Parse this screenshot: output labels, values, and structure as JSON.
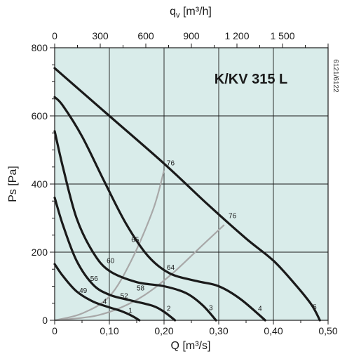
{
  "chart_data": {
    "type": "line",
    "title": "K/KV 315 L",
    "side_code": "6121/6122",
    "xlabel": "Q [m³/s]",
    "x2label": "qv [m³/h]",
    "x2label_main": "q",
    "x2label_sub": "v",
    "x2label_unit": " [m³/h]",
    "ylabel": "Ps [Pa]",
    "xlim": [
      0,
      0.5
    ],
    "x2lim": [
      0,
      1800
    ],
    "ylim": [
      0,
      800
    ],
    "x_ticks": [
      {
        "value": 0,
        "label": "0"
      },
      {
        "value": 0.1,
        "label": "0,10"
      },
      {
        "value": 0.2,
        "label": "0,20"
      },
      {
        "value": 0.3,
        "label": "0,30"
      },
      {
        "value": 0.4,
        "label": "0,40"
      },
      {
        "value": 0.5,
        "label": "0,50"
      }
    ],
    "x2_ticks": [
      {
        "value": 0,
        "label": "0"
      },
      {
        "value": 300,
        "label": "300"
      },
      {
        "value": 600,
        "label": "600"
      },
      {
        "value": 900,
        "label": "900"
      },
      {
        "value": 1200,
        "label": "1 200"
      },
      {
        "value": 1500,
        "label": "1 500"
      }
    ],
    "y_ticks": [
      {
        "value": 0,
        "label": "0"
      },
      {
        "value": 200,
        "label": "200"
      },
      {
        "value": 400,
        "label": "400"
      },
      {
        "value": 600,
        "label": "600"
      },
      {
        "value": 800,
        "label": "800"
      }
    ],
    "grid": true,
    "background": "#d9ecea",
    "curve_color": "#1a1a1a",
    "efficiency_color": "#a8a8a8",
    "series": [
      {
        "name": "1",
        "points": [
          [
            0,
            165
          ],
          [
            0.015,
            130
          ],
          [
            0.04,
            85
          ],
          [
            0.07,
            55
          ],
          [
            0.1,
            38
          ],
          [
            0.12,
            28
          ],
          [
            0.14,
            14
          ],
          [
            0.155,
            0
          ]
        ]
      },
      {
        "name": "2",
        "points": [
          [
            0,
            360
          ],
          [
            0.015,
            280
          ],
          [
            0.04,
            175
          ],
          [
            0.07,
            105
          ],
          [
            0.1,
            75
          ],
          [
            0.14,
            58
          ],
          [
            0.18,
            42
          ],
          [
            0.2,
            25
          ],
          [
            0.22,
            0
          ]
        ]
      },
      {
        "name": "3",
        "points": [
          [
            0,
            555
          ],
          [
            0.015,
            450
          ],
          [
            0.04,
            300
          ],
          [
            0.07,
            200
          ],
          [
            0.1,
            145
          ],
          [
            0.15,
            112
          ],
          [
            0.2,
            100
          ],
          [
            0.24,
            80
          ],
          [
            0.27,
            45
          ],
          [
            0.295,
            0
          ]
        ]
      },
      {
        "name": "4",
        "points": [
          [
            0,
            655
          ],
          [
            0.015,
            630
          ],
          [
            0.05,
            540
          ],
          [
            0.09,
            410
          ],
          [
            0.13,
            285
          ],
          [
            0.17,
            190
          ],
          [
            0.21,
            138
          ],
          [
            0.26,
            115
          ],
          [
            0.3,
            100
          ],
          [
            0.34,
            62
          ],
          [
            0.385,
            0
          ]
        ]
      },
      {
        "name": "5",
        "points": [
          [
            0,
            740
          ],
          [
            0.1,
            600
          ],
          [
            0.2,
            460
          ],
          [
            0.28,
            340
          ],
          [
            0.35,
            240
          ],
          [
            0.4,
            175
          ],
          [
            0.44,
            105
          ],
          [
            0.47,
            45
          ],
          [
            0.485,
            0
          ]
        ]
      }
    ],
    "efficiency_lines": [
      {
        "points": [
          [
            0,
            0
          ],
          [
            0.05,
            20
          ],
          [
            0.1,
            70
          ],
          [
            0.14,
            175
          ],
          [
            0.18,
            325
          ],
          [
            0.2,
            440
          ]
        ]
      },
      {
        "points": [
          [
            0,
            0
          ],
          [
            0.08,
            15
          ],
          [
            0.15,
            60
          ],
          [
            0.21,
            130
          ],
          [
            0.27,
            220
          ],
          [
            0.31,
            280
          ]
        ]
      }
    ],
    "labels": [
      {
        "text": "76",
        "x": 0.205,
        "y": 455
      },
      {
        "text": "76",
        "x": 0.318,
        "y": 300
      },
      {
        "text": "65",
        "x": 0.14,
        "y": 230
      },
      {
        "text": "64",
        "x": 0.205,
        "y": 148
      },
      {
        "text": "60",
        "x": 0.095,
        "y": 168
      },
      {
        "text": "56",
        "x": 0.065,
        "y": 115
      },
      {
        "text": "58",
        "x": 0.15,
        "y": 88
      },
      {
        "text": "52",
        "x": 0.12,
        "y": 65
      },
      {
        "text": "49",
        "x": 0.045,
        "y": 80
      },
      {
        "text": "4",
        "x": 0.088,
        "y": 48
      },
      {
        "text": "1",
        "x": 0.135,
        "y": 22
      },
      {
        "text": "2",
        "x": 0.205,
        "y": 28
      },
      {
        "text": "3",
        "x": 0.282,
        "y": 30
      },
      {
        "text": "4",
        "x": 0.372,
        "y": 28
      },
      {
        "text": "5",
        "x": 0.472,
        "y": 32
      }
    ]
  }
}
